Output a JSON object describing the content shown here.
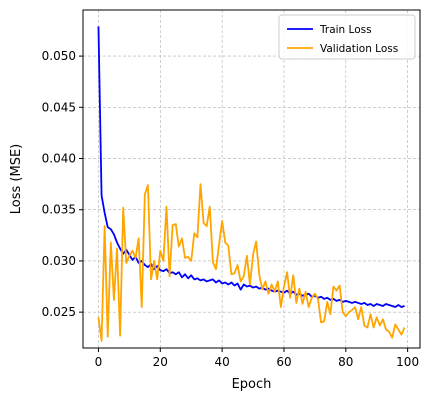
{
  "chart_data": {
    "type": "line",
    "title": "",
    "xlabel": "Epoch",
    "ylabel": "Loss (MSE)",
    "xlim": [
      -5,
      104
    ],
    "ylim": [
      0.0215,
      0.0545
    ],
    "xticks": [
      0,
      20,
      40,
      60,
      80,
      100
    ],
    "yticks": [
      0.025,
      0.03,
      0.035,
      0.04,
      0.045,
      0.05
    ],
    "ytick_labels": [
      "0.025",
      "0.030",
      "0.035",
      "0.040",
      "0.045",
      "0.050"
    ],
    "grid": true,
    "legend_position": "top-right",
    "series": [
      {
        "name": "Train Loss",
        "color": "#0000ff",
        "x": [
          0,
          1,
          2,
          3,
          4,
          5,
          6,
          7,
          8,
          9,
          10,
          11,
          12,
          13,
          14,
          15,
          16,
          17,
          18,
          19,
          20,
          21,
          22,
          23,
          24,
          25,
          26,
          27,
          28,
          29,
          30,
          31,
          32,
          33,
          34,
          35,
          36,
          37,
          38,
          39,
          40,
          41,
          42,
          43,
          44,
          45,
          46,
          47,
          48,
          49,
          50,
          51,
          52,
          53,
          54,
          55,
          56,
          57,
          58,
          59,
          60,
          61,
          62,
          63,
          64,
          65,
          66,
          67,
          68,
          69,
          70,
          71,
          72,
          73,
          74,
          75,
          76,
          77,
          78,
          79,
          80,
          81,
          82,
          83,
          84,
          85,
          86,
          87,
          88,
          89,
          90,
          91,
          92,
          93,
          94,
          95,
          96,
          97,
          98,
          99
        ],
        "values": [
          0.0529,
          0.0364,
          0.0347,
          0.0333,
          0.0331,
          0.0326,
          0.0318,
          0.0312,
          0.0307,
          0.0311,
          0.0306,
          0.0301,
          0.0304,
          0.0298,
          0.03,
          0.0296,
          0.0294,
          0.0297,
          0.0292,
          0.0295,
          0.0291,
          0.029,
          0.0292,
          0.0288,
          0.0289,
          0.0287,
          0.0289,
          0.0284,
          0.0287,
          0.0283,
          0.0286,
          0.0282,
          0.0283,
          0.0281,
          0.0282,
          0.028,
          0.0281,
          0.0282,
          0.0279,
          0.0281,
          0.0278,
          0.0279,
          0.0277,
          0.0279,
          0.0276,
          0.0278,
          0.0272,
          0.0277,
          0.0275,
          0.0276,
          0.0274,
          0.0275,
          0.0273,
          0.0274,
          0.0272,
          0.0273,
          0.0271,
          0.027,
          0.0271,
          0.027,
          0.0269,
          0.0271,
          0.0268,
          0.027,
          0.0267,
          0.0268,
          0.0266,
          0.0267,
          0.0268,
          0.0265,
          0.0266,
          0.0264,
          0.0265,
          0.0263,
          0.0264,
          0.0262,
          0.0263,
          0.0261,
          0.0262,
          0.026,
          0.0261,
          0.026,
          0.0259,
          0.026,
          0.0259,
          0.0258,
          0.0259,
          0.0257,
          0.0258,
          0.0256,
          0.0258,
          0.0257,
          0.0256,
          0.0258,
          0.0257,
          0.0256,
          0.0255,
          0.0257,
          0.0255,
          0.0256
        ]
      },
      {
        "name": "Validation Loss",
        "color": "#ffa500",
        "x": [
          0,
          1,
          2,
          3,
          4,
          5,
          6,
          7,
          8,
          9,
          10,
          11,
          12,
          13,
          14,
          15,
          16,
          17,
          18,
          19,
          20,
          21,
          22,
          23,
          24,
          25,
          26,
          27,
          28,
          29,
          30,
          31,
          32,
          33,
          34,
          35,
          36,
          37,
          38,
          39,
          40,
          41,
          42,
          43,
          44,
          45,
          46,
          47,
          48,
          49,
          50,
          51,
          52,
          53,
          54,
          55,
          56,
          57,
          58,
          59,
          60,
          61,
          62,
          63,
          64,
          65,
          66,
          67,
          68,
          69,
          70,
          71,
          72,
          73,
          74,
          75,
          76,
          77,
          78,
          79,
          80,
          81,
          82,
          83,
          84,
          85,
          86,
          87,
          88,
          89,
          90,
          91,
          92,
          93,
          94,
          95,
          96,
          97,
          98,
          99
        ],
        "values": [
          0.0245,
          0.0222,
          0.0334,
          0.0226,
          0.0318,
          0.0262,
          0.0312,
          0.0227,
          0.0352,
          0.0298,
          0.0305,
          0.031,
          0.0303,
          0.0322,
          0.0255,
          0.0365,
          0.0374,
          0.0282,
          0.03,
          0.0282,
          0.031,
          0.03,
          0.0353,
          0.0285,
          0.0335,
          0.0336,
          0.0314,
          0.0322,
          0.0303,
          0.0304,
          0.03,
          0.0327,
          0.0323,
          0.0375,
          0.0337,
          0.0334,
          0.0353,
          0.0299,
          0.0292,
          0.0316,
          0.0339,
          0.0318,
          0.0315,
          0.0287,
          0.0288,
          0.0296,
          0.028,
          0.0285,
          0.0305,
          0.0277,
          0.0306,
          0.0319,
          0.0287,
          0.0272,
          0.028,
          0.0268,
          0.0277,
          0.027,
          0.028,
          0.0255,
          0.0275,
          0.0289,
          0.0264,
          0.0286,
          0.0259,
          0.0273,
          0.0258,
          0.027,
          0.0255,
          0.0264,
          0.0268,
          0.0263,
          0.024,
          0.0241,
          0.026,
          0.0248,
          0.0275,
          0.0271,
          0.0276,
          0.025,
          0.0246,
          0.025,
          0.0252,
          0.0255,
          0.0243,
          0.0255,
          0.0237,
          0.0235,
          0.0248,
          0.0235,
          0.0245,
          0.0237,
          0.0243,
          0.0233,
          0.0231,
          0.0225,
          0.0238,
          0.0233,
          0.0228,
          0.0235
        ]
      }
    ]
  }
}
